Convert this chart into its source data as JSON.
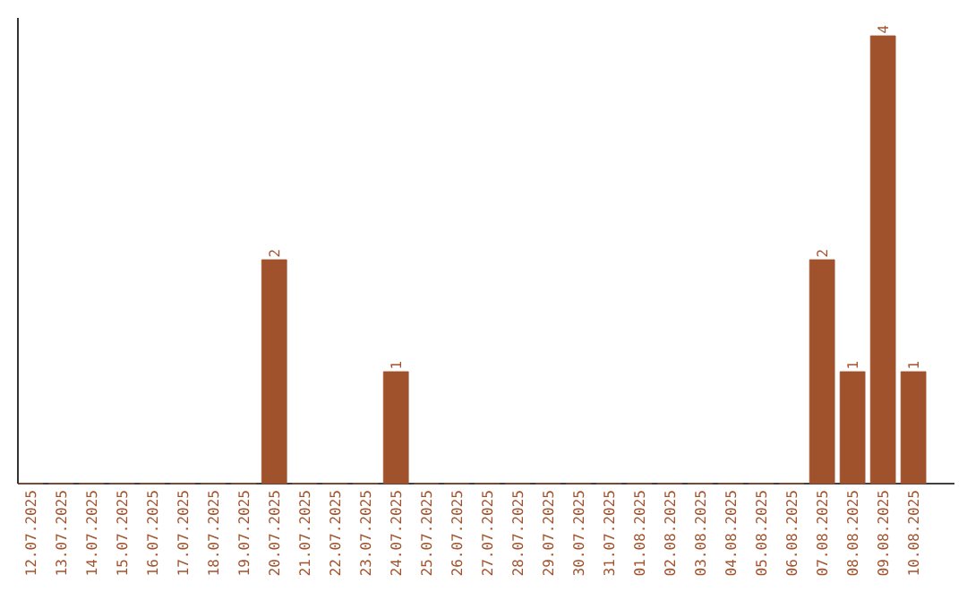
{
  "chart_data": {
    "type": "bar",
    "categories": [
      "12.07.2025",
      "13.07.2025",
      "14.07.2025",
      "15.07.2025",
      "16.07.2025",
      "17.07.2025",
      "18.07.2025",
      "19.07.2025",
      "20.07.2025",
      "21.07.2025",
      "22.07.2025",
      "23.07.2025",
      "24.07.2025",
      "25.07.2025",
      "26.07.2025",
      "27.07.2025",
      "28.07.2025",
      "29.07.2025",
      "30.07.2025",
      "31.07.2025",
      "01.08.2025",
      "02.08.2025",
      "03.08.2025",
      "04.08.2025",
      "05.08.2025",
      "06.08.2025",
      "07.08.2025",
      "08.08.2025",
      "09.08.2025",
      "10.08.2025"
    ],
    "values": [
      0,
      0,
      0,
      0,
      0,
      0,
      0,
      0,
      2,
      0,
      0,
      0,
      1,
      0,
      0,
      0,
      0,
      0,
      0,
      0,
      0,
      0,
      0,
      0,
      0,
      0,
      2,
      1,
      4,
      1
    ],
    "value_labels": [
      null,
      null,
      null,
      null,
      null,
      null,
      null,
      null,
      "2",
      null,
      null,
      null,
      "1",
      null,
      null,
      null,
      null,
      null,
      null,
      null,
      null,
      null,
      null,
      null,
      null,
      null,
      "2",
      "1",
      "4",
      "1"
    ],
    "color": "#a0522d"
  }
}
